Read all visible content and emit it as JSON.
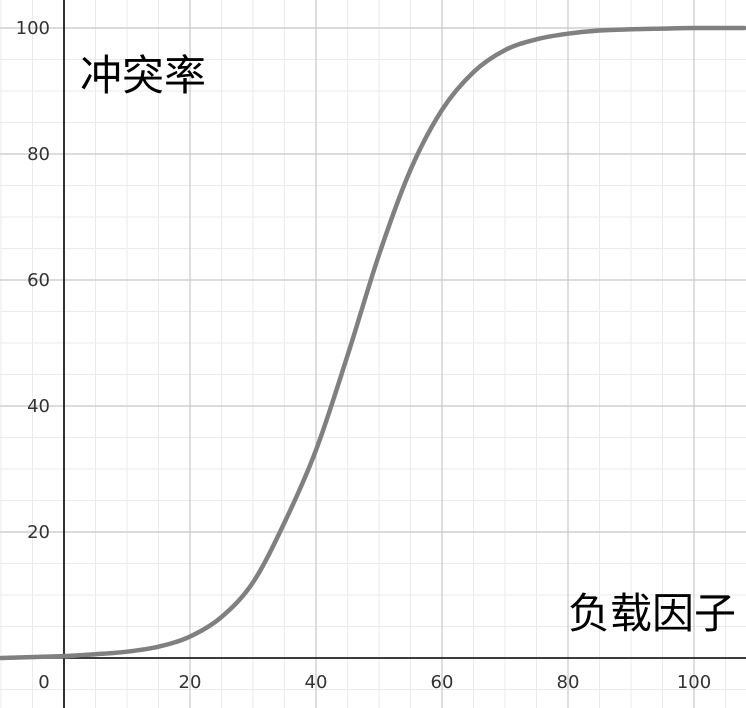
{
  "chart_data": {
    "type": "line",
    "title": "",
    "xlabel": "负载因子",
    "ylabel": "冲突率",
    "xlim": [
      -10,
      108
    ],
    "ylim": [
      -8,
      102
    ],
    "grid": true,
    "x_ticks": [
      0,
      20,
      40,
      60,
      80,
      100
    ],
    "y_ticks": [
      20,
      40,
      60,
      80,
      100
    ],
    "x_tick_labels": [
      "0",
      "20",
      "40",
      "60",
      "80",
      "100"
    ],
    "y_tick_labels": [
      "20",
      "40",
      "60",
      "80",
      "100"
    ],
    "series": [
      {
        "color": "#808080",
        "x": [
          -10,
          0,
          5,
          10,
          15,
          20,
          25,
          30,
          35,
          40,
          45,
          50,
          55,
          60,
          65,
          70,
          75,
          80,
          85,
          90,
          95,
          100,
          108
        ],
        "y": [
          0,
          0.3,
          0.6,
          1.0,
          1.8,
          3.4,
          6.5,
          12.0,
          21.5,
          33.0,
          48.0,
          64.0,
          77.5,
          87.0,
          93.0,
          96.5,
          98.2,
          99.1,
          99.6,
          99.8,
          99.9,
          100,
          100
        ]
      }
    ]
  }
}
